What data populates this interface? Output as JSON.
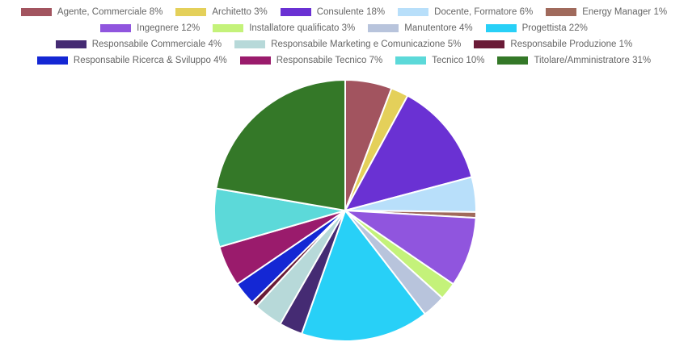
{
  "chart_data": {
    "type": "pie",
    "legend_position": "top",
    "start_angle": "top",
    "direction": "clockwise",
    "slices": [
      {
        "label": "Agente, Commerciale 8%",
        "value": 8,
        "color": "#a2545f"
      },
      {
        "label": "Architetto 3%",
        "value": 3,
        "color": "#e4d05a"
      },
      {
        "label": "Consulente 18%",
        "value": 18,
        "color": "#6a31d3"
      },
      {
        "label": "Docente, Formatore 6%",
        "value": 6,
        "color": "#b8dffa"
      },
      {
        "label": "Energy Manager 1%",
        "value": 1,
        "color": "#a06a5c"
      },
      {
        "label": "Ingegnere 12%",
        "value": 12,
        "color": "#9055de"
      },
      {
        "label": "Installatore qualificato 3%",
        "value": 3,
        "color": "#c4f27a"
      },
      {
        "label": "Manutentore 4%",
        "value": 4,
        "color": "#b8c4dc"
      },
      {
        "label": "Progettista 22%",
        "value": 22,
        "color": "#28d0f7"
      },
      {
        "label": "Responsabile Commerciale 4%",
        "value": 4,
        "color": "#452b73"
      },
      {
        "label": "Responsabile Marketing e Comunicazione 5%",
        "value": 5,
        "color": "#b7d9d9"
      },
      {
        "label": "Responsabile Produzione 1%",
        "value": 1,
        "color": "#6a1b37"
      },
      {
        "label": "Responsabile Ricerca & Sviluppo 4%",
        "value": 4,
        "color": "#1427d4"
      },
      {
        "label": "Responsabile Tecnico 7%",
        "value": 7,
        "color": "#9a1b6c"
      },
      {
        "label": "Tecnico 10%",
        "value": 10,
        "color": "#5cd9d9"
      },
      {
        "label": "Titolare/Amministratore 31%",
        "value": 31,
        "color": "#347828"
      }
    ]
  }
}
